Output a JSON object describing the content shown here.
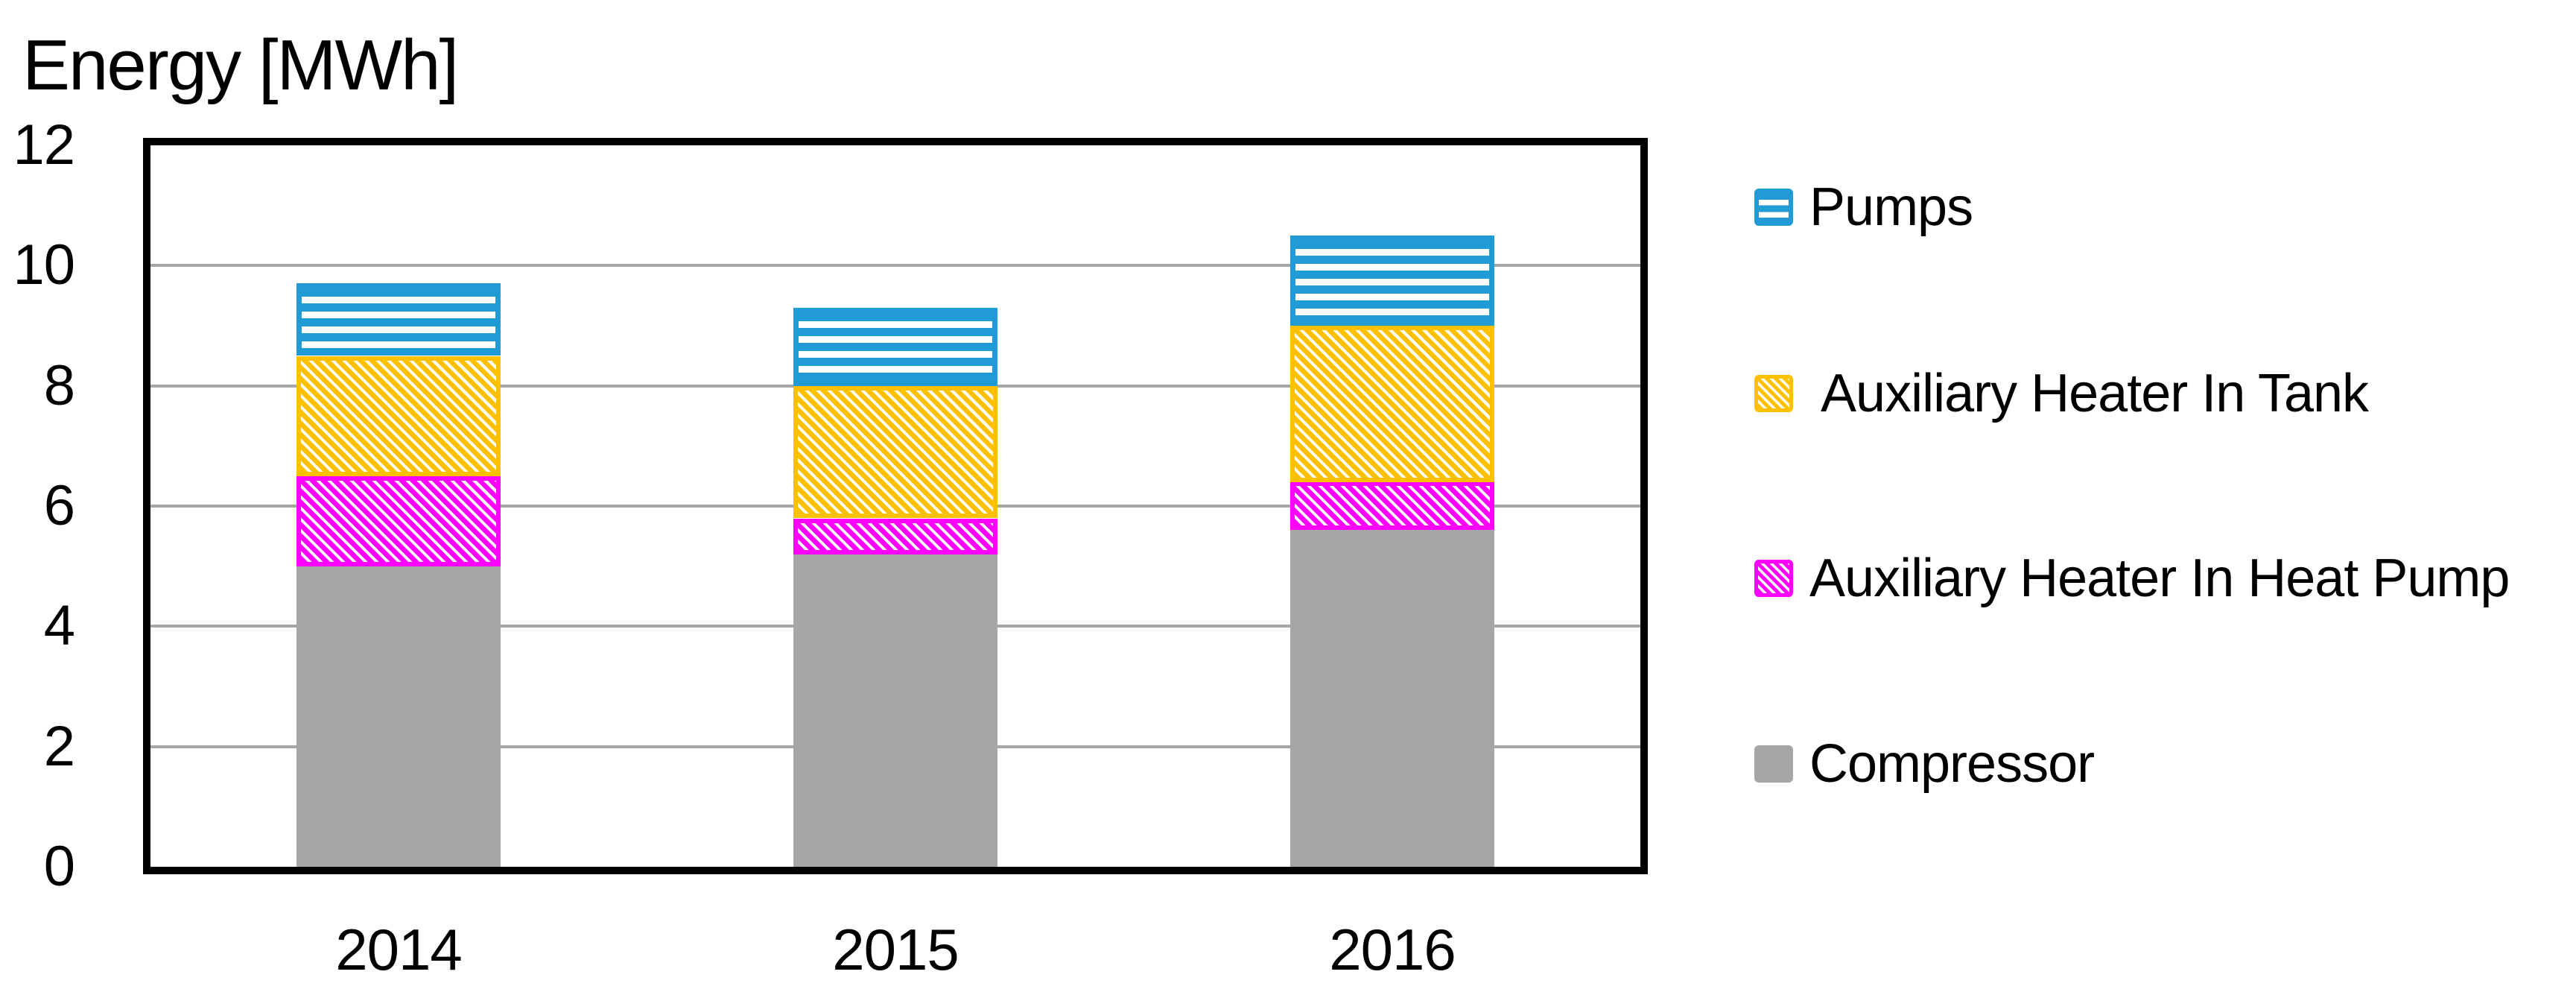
{
  "page": {
    "background": "#FFFFFF"
  },
  "chart_data": {
    "type": "bar",
    "stacked": true,
    "title": "Energy [MWh]",
    "categories": [
      "2014",
      "2015",
      "2016"
    ],
    "series": [
      {
        "name": "Compressor",
        "pattern": "solid",
        "color": "#A6A6A6",
        "values": [
          5.0,
          5.2,
          5.6
        ]
      },
      {
        "name": "Auxiliary Heater In Heat Pump",
        "pattern": "diagonal-stripes",
        "color": "#FF00FF",
        "values": [
          1.5,
          0.6,
          0.8
        ]
      },
      {
        "name": " Auxiliary Heater In Tank",
        "pattern": "diagonal-stripes",
        "color": "#FFC000",
        "values": [
          2.0,
          2.2,
          2.6
        ]
      },
      {
        "name": "Pumps",
        "pattern": "horizontal-stripes",
        "color": "#209BD5",
        "values": [
          1.2,
          1.3,
          1.5
        ]
      }
    ],
    "stack_totals": [
      9.7,
      9.3,
      10.5
    ],
    "ylim": [
      0,
      12
    ],
    "yticks": [
      0,
      2,
      4,
      6,
      8,
      10,
      12
    ],
    "xlabel": "",
    "ylabel": "Energy [MWh]",
    "grid": true,
    "gridline_color": "#A6A6A6",
    "axis_color": "#000000",
    "legend_position": "right",
    "legend_order_top_to_bottom": [
      3,
      2,
      1,
      0
    ]
  }
}
